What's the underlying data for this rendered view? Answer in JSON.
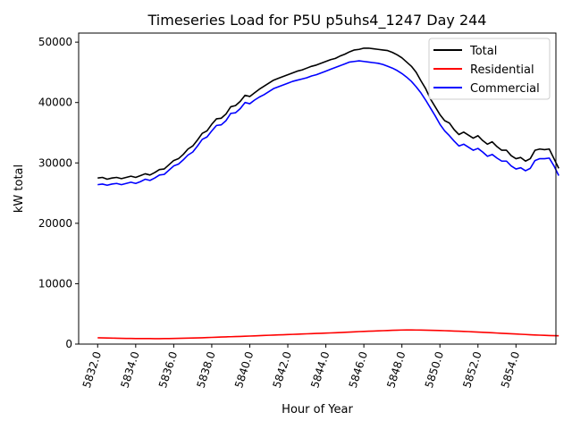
{
  "chart_data": {
    "type": "line",
    "title": "Timeseries Load for P5U p5uhs4_1247  Day 244",
    "xlabel": "Hour of Year",
    "ylabel": "kW total",
    "xlim": [
      5831.0,
      5856.1
    ],
    "ylim": [
      0,
      51500
    ],
    "x_ticks": [
      5832,
      5834,
      5836,
      5838,
      5840,
      5842,
      5844,
      5846,
      5848,
      5850,
      5852,
      5854
    ],
    "x_tick_labels": [
      "5832.0",
      "5834.0",
      "5836.0",
      "5838.0",
      "5840.0",
      "5842.0",
      "5844.0",
      "5846.0",
      "5848.0",
      "5850.0",
      "5852.0",
      "5854.0"
    ],
    "y_ticks": [
      0,
      10000,
      20000,
      30000,
      40000,
      50000
    ],
    "y_tick_labels": [
      "0",
      "10000",
      "20000",
      "30000",
      "40000",
      "50000"
    ],
    "legend_position": "top-right",
    "grid": false,
    "x_start": 5832.0,
    "x_step": 0.25,
    "series": [
      {
        "name": "Total",
        "color": "#000000",
        "values": [
          27500,
          27600,
          27300,
          27500,
          27600,
          27400,
          27600,
          27800,
          27600,
          27900,
          28200,
          28000,
          28400,
          28900,
          29000,
          29700,
          30400,
          30700,
          31400,
          32300,
          32800,
          33800,
          34900,
          35300,
          36400,
          37300,
          37400,
          38100,
          39300,
          39500,
          40200,
          41200,
          41000,
          41600,
          42200,
          42700,
          43200,
          43700,
          44000,
          44300,
          44600,
          44900,
          45200,
          45400,
          45700,
          46000,
          46200,
          46500,
          46800,
          47100,
          47300,
          47700,
          48000,
          48400,
          48700,
          48800,
          49000,
          49000,
          48900,
          48800,
          48700,
          48600,
          48300,
          47900,
          47400,
          46700,
          46000,
          45000,
          43600,
          42300,
          40600,
          39300,
          38000,
          37000,
          36600,
          35500,
          34700,
          35100,
          34600,
          34100,
          34500,
          33700,
          33100,
          33500,
          32700,
          32100,
          32100,
          31200,
          30700,
          30900,
          30300,
          30700,
          32100,
          32300,
          32200,
          32300,
          30700,
          29100
        ]
      },
      {
        "name": "Residential",
        "color": "#ff0000",
        "values": [
          1050,
          1030,
          1010,
          990,
          970,
          950,
          940,
          930,
          920,
          920,
          910,
          910,
          900,
          900,
          910,
          920,
          930,
          950,
          970,
          990,
          1010,
          1030,
          1050,
          1080,
          1110,
          1140,
          1170,
          1200,
          1220,
          1250,
          1270,
          1300,
          1330,
          1360,
          1400,
          1430,
          1460,
          1490,
          1520,
          1550,
          1580,
          1610,
          1640,
          1670,
          1700,
          1730,
          1760,
          1790,
          1820,
          1850,
          1880,
          1910,
          1950,
          1990,
          2030,
          2070,
          2100,
          2130,
          2160,
          2190,
          2220,
          2250,
          2280,
          2310,
          2330,
          2340,
          2340,
          2330,
          2320,
          2300,
          2280,
          2260,
          2240,
          2220,
          2190,
          2160,
          2130,
          2100,
          2070,
          2030,
          1990,
          1950,
          1910,
          1870,
          1830,
          1790,
          1750,
          1710,
          1670,
          1630,
          1590,
          1550,
          1510,
          1480,
          1450,
          1420,
          1400,
          1380
        ]
      },
      {
        "name": "Commercial",
        "color": "#0000ff",
        "values": [
          26400,
          26500,
          26300,
          26500,
          26600,
          26400,
          26600,
          26800,
          26600,
          26900,
          27300,
          27100,
          27500,
          28000,
          28100,
          28800,
          29500,
          29800,
          30500,
          31300,
          31800,
          32800,
          33900,
          34300,
          35300,
          36200,
          36300,
          37000,
          38200,
          38300,
          39000,
          40000,
          39800,
          40400,
          40900,
          41300,
          41800,
          42300,
          42600,
          42900,
          43200,
          43500,
          43700,
          43900,
          44100,
          44400,
          44600,
          44900,
          45200,
          45500,
          45800,
          46100,
          46400,
          46700,
          46800,
          46900,
          46800,
          46700,
          46600,
          46500,
          46300,
          46000,
          45700,
          45300,
          44800,
          44200,
          43500,
          42600,
          41600,
          40400,
          39100,
          37800,
          36400,
          35300,
          34500,
          33600,
          32800,
          33100,
          32600,
          32100,
          32400,
          31800,
          31100,
          31400,
          30800,
          30300,
          30300,
          29500,
          29000,
          29200,
          28700,
          29100,
          30400,
          30700,
          30700,
          30800,
          29500,
          27900
        ]
      }
    ]
  }
}
